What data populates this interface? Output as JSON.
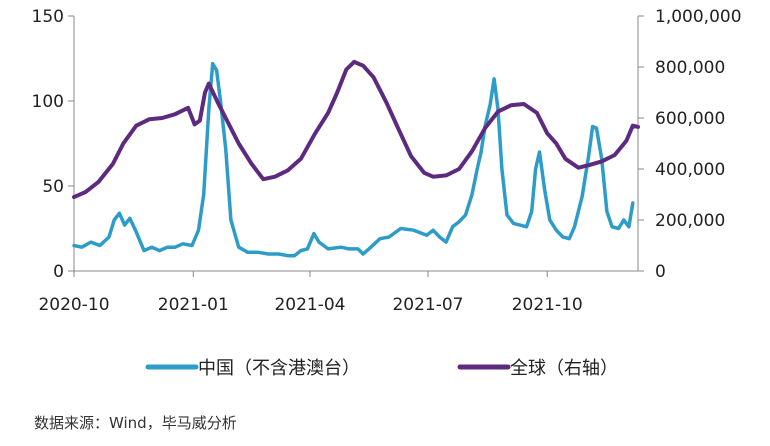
{
  "chart_data": {
    "type": "line",
    "x_ticks": [
      "2020-10",
      "2021-01",
      "2021-04",
      "2021-07",
      "2021-10"
    ],
    "left_axis": {
      "ylim": [
        0,
        150
      ],
      "ticks": [
        "0",
        "50",
        "100",
        "150"
      ]
    },
    "right_axis": {
      "ylim": [
        0,
        1000000
      ],
      "ticks": [
        "0",
        "200,000",
        "400,000",
        "600,000",
        "800,000",
        "1,000,000"
      ]
    },
    "xlim": [
      "2020-10-01",
      "2021-12-10"
    ],
    "grid": false,
    "legend_position": "bottom",
    "series": [
      {
        "name": "中国（不含港澳台）",
        "axis": "left",
        "color": "#2E9CC8",
        "points": [
          [
            "2020-10-01",
            15
          ],
          [
            "2020-10-07",
            14
          ],
          [
            "2020-10-14",
            17
          ],
          [
            "2020-10-21",
            15
          ],
          [
            "2020-10-28",
            20
          ],
          [
            "2020-11-01",
            30
          ],
          [
            "2020-11-05",
            34
          ],
          [
            "2020-11-09",
            27
          ],
          [
            "2020-11-13",
            31
          ],
          [
            "2020-11-18",
            23
          ],
          [
            "2020-11-24",
            12
          ],
          [
            "2020-11-30",
            14
          ],
          [
            "2020-12-06",
            12
          ],
          [
            "2020-12-12",
            14
          ],
          [
            "2020-12-18",
            14
          ],
          [
            "2020-12-24",
            16
          ],
          [
            "2020-12-31",
            15
          ],
          [
            "2021-01-05",
            24
          ],
          [
            "2021-01-09",
            45
          ],
          [
            "2021-01-13",
            95
          ],
          [
            "2021-01-16",
            122
          ],
          [
            "2021-01-19",
            118
          ],
          [
            "2021-01-22",
            100
          ],
          [
            "2021-01-26",
            72
          ],
          [
            "2021-01-30",
            30
          ],
          [
            "2021-02-05",
            14
          ],
          [
            "2021-02-12",
            11
          ],
          [
            "2021-02-20",
            11
          ],
          [
            "2021-02-28",
            10
          ],
          [
            "2021-03-08",
            10
          ],
          [
            "2021-03-15",
            9
          ],
          [
            "2021-03-20",
            9
          ],
          [
            "2021-03-25",
            12
          ],
          [
            "2021-03-30",
            13
          ],
          [
            "2021-04-04",
            22
          ],
          [
            "2021-04-08",
            17
          ],
          [
            "2021-04-15",
            13
          ],
          [
            "2021-04-25",
            14
          ],
          [
            "2021-05-01",
            13
          ],
          [
            "2021-05-08",
            13
          ],
          [
            "2021-05-12",
            10
          ],
          [
            "2021-05-18",
            14
          ],
          [
            "2021-05-25",
            19
          ],
          [
            "2021-06-01",
            20
          ],
          [
            "2021-06-10",
            25
          ],
          [
            "2021-06-20",
            24
          ],
          [
            "2021-06-30",
            21
          ],
          [
            "2021-07-05",
            24
          ],
          [
            "2021-07-10",
            20
          ],
          [
            "2021-07-15",
            17
          ],
          [
            "2021-07-20",
            26
          ],
          [
            "2021-07-25",
            29
          ],
          [
            "2021-07-30",
            33
          ],
          [
            "2021-08-04",
            45
          ],
          [
            "2021-08-08",
            60
          ],
          [
            "2021-08-11",
            70
          ],
          [
            "2021-08-14",
            85
          ],
          [
            "2021-08-18",
            98
          ],
          [
            "2021-08-21",
            113
          ],
          [
            "2021-08-24",
            95
          ],
          [
            "2021-08-27",
            60
          ],
          [
            "2021-08-31",
            33
          ],
          [
            "2021-09-05",
            28
          ],
          [
            "2021-09-10",
            27
          ],
          [
            "2021-09-15",
            26
          ],
          [
            "2021-09-19",
            35
          ],
          [
            "2021-09-22",
            60
          ],
          [
            "2021-09-25",
            70
          ],
          [
            "2021-09-29",
            48
          ],
          [
            "2021-10-03",
            30
          ],
          [
            "2021-10-08",
            24
          ],
          [
            "2021-10-13",
            20
          ],
          [
            "2021-10-18",
            19
          ],
          [
            "2021-10-22",
            26
          ],
          [
            "2021-10-28",
            44
          ],
          [
            "2021-11-02",
            68
          ],
          [
            "2021-11-05",
            85
          ],
          [
            "2021-11-08",
            84
          ],
          [
            "2021-11-12",
            66
          ],
          [
            "2021-11-16",
            35
          ],
          [
            "2021-11-20",
            26
          ],
          [
            "2021-11-25",
            25
          ],
          [
            "2021-11-29",
            30
          ],
          [
            "2021-12-03",
            26
          ],
          [
            "2021-12-06",
            40
          ]
        ]
      },
      {
        "name": "全球（右轴）",
        "axis": "right",
        "color": "#5C2A7E",
        "points": [
          [
            "2020-10-01",
            290000
          ],
          [
            "2020-10-10",
            310000
          ],
          [
            "2020-10-20",
            350000
          ],
          [
            "2020-10-31",
            420000
          ],
          [
            "2020-11-08",
            500000
          ],
          [
            "2020-11-18",
            570000
          ],
          [
            "2020-11-28",
            595000
          ],
          [
            "2020-12-08",
            600000
          ],
          [
            "2020-12-18",
            615000
          ],
          [
            "2020-12-28",
            640000
          ],
          [
            "2021-01-02",
            575000
          ],
          [
            "2021-01-06",
            590000
          ],
          [
            "2021-01-10",
            700000
          ],
          [
            "2021-01-13",
            735000
          ],
          [
            "2021-01-20",
            660000
          ],
          [
            "2021-01-28",
            580000
          ],
          [
            "2021-02-05",
            500000
          ],
          [
            "2021-02-15",
            420000
          ],
          [
            "2021-02-24",
            360000
          ],
          [
            "2021-03-05",
            370000
          ],
          [
            "2021-03-15",
            395000
          ],
          [
            "2021-03-25",
            440000
          ],
          [
            "2021-04-05",
            540000
          ],
          [
            "2021-04-15",
            620000
          ],
          [
            "2021-04-22",
            700000
          ],
          [
            "2021-04-29",
            790000
          ],
          [
            "2021-05-05",
            820000
          ],
          [
            "2021-05-12",
            805000
          ],
          [
            "2021-05-20",
            760000
          ],
          [
            "2021-05-30",
            660000
          ],
          [
            "2021-06-08",
            560000
          ],
          [
            "2021-06-18",
            450000
          ],
          [
            "2021-06-28",
            385000
          ],
          [
            "2021-07-05",
            370000
          ],
          [
            "2021-07-15",
            375000
          ],
          [
            "2021-07-25",
            400000
          ],
          [
            "2021-08-04",
            470000
          ],
          [
            "2021-08-14",
            560000
          ],
          [
            "2021-08-24",
            625000
          ],
          [
            "2021-09-03",
            650000
          ],
          [
            "2021-09-13",
            655000
          ],
          [
            "2021-09-23",
            620000
          ],
          [
            "2021-10-01",
            540000
          ],
          [
            "2021-10-08",
            500000
          ],
          [
            "2021-10-15",
            440000
          ],
          [
            "2021-10-25",
            405000
          ],
          [
            "2021-11-02",
            415000
          ],
          [
            "2021-11-12",
            430000
          ],
          [
            "2021-11-22",
            455000
          ],
          [
            "2021-12-01",
            510000
          ],
          [
            "2021-12-06",
            570000
          ],
          [
            "2021-12-10",
            565000
          ]
        ]
      }
    ]
  },
  "source_text": "数据来源：Wind，毕马威分析"
}
